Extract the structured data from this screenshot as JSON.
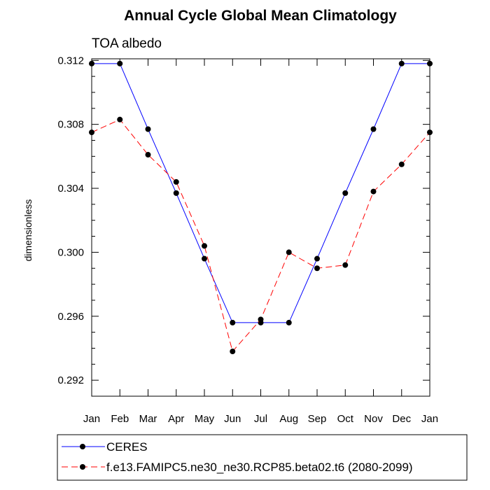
{
  "chart_data": {
    "type": "line",
    "title": "Annual Cycle Global Mean Climatology",
    "subtitle": "TOA albedo",
    "xlabel": "",
    "ylabel": "dimensionless",
    "categories": [
      "Jan",
      "Feb",
      "Mar",
      "Apr",
      "May",
      "Jun",
      "Jul",
      "Aug",
      "Sep",
      "Oct",
      "Nov",
      "Dec",
      "Jan"
    ],
    "ylim": [
      0.291,
      0.3121
    ],
    "y_ticks": [
      0.292,
      0.296,
      0.3,
      0.304,
      0.308,
      0.312
    ],
    "y_tick_labels": [
      "0.292",
      "0.296",
      "0.300",
      "0.304",
      "0.308",
      "0.312"
    ],
    "grid": false,
    "legend_position": "bottom",
    "series": [
      {
        "name": "CERES",
        "color": "#0000ff",
        "dash": "solid",
        "marker": "circle",
        "values": [
          0.3118,
          0.3118,
          0.3077,
          0.3037,
          0.2996,
          0.2956,
          0.2956,
          0.2956,
          0.2996,
          0.3037,
          0.3077,
          0.3118,
          0.3118
        ]
      },
      {
        "name": "f.e13.FAMIPC5.ne30_ne30.RCP85.beta02.t6 (2080-2099)",
        "color": "#ff0000",
        "dash": "dashed",
        "marker": "circle",
        "values": [
          0.3075,
          0.3083,
          0.3061,
          0.3044,
          0.3004,
          0.2938,
          0.2958,
          0.3,
          0.299,
          0.2992,
          0.3038,
          0.3055,
          0.3075
        ]
      }
    ]
  }
}
